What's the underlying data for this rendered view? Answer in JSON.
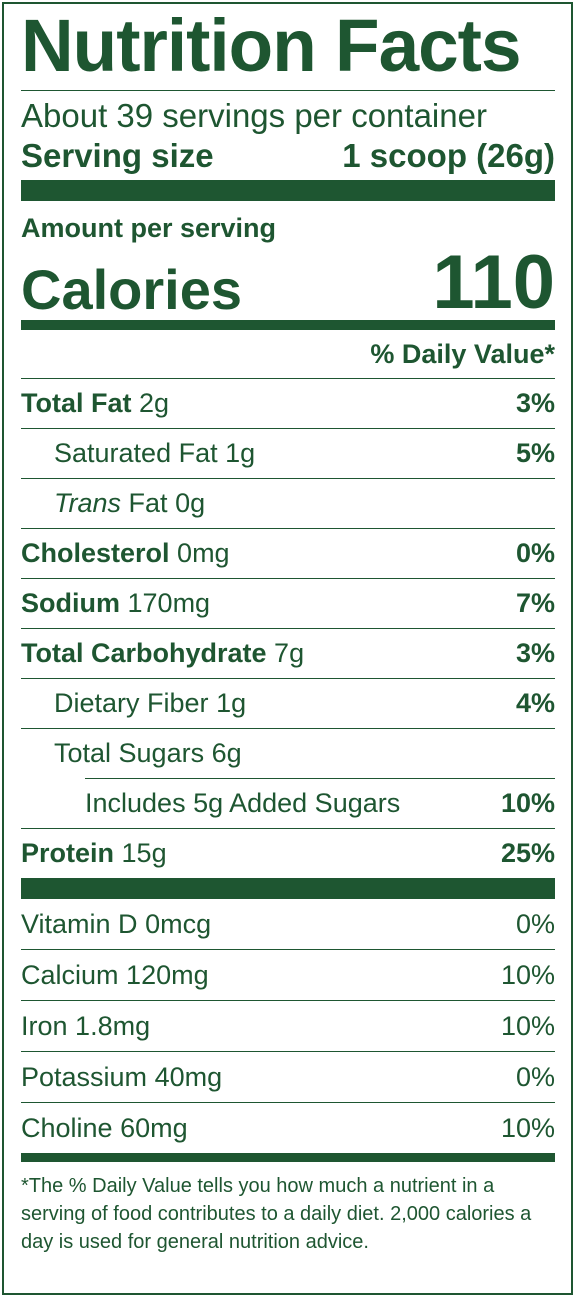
{
  "title": "Nutrition Facts",
  "servings_per_container": "About 39 servings per container",
  "serving_size": {
    "label": "Serving size",
    "value": "1 scoop (26g)"
  },
  "amount_per_serving": "Amount per serving",
  "calories": {
    "label": "Calories",
    "value": "110"
  },
  "daily_value_header": "% Daily Value*",
  "nutrients": [
    {
      "name": "Total Fat",
      "amount": "2g",
      "dv": "3%"
    },
    {
      "name": "Saturated Fat",
      "amount": "1g",
      "dv": "5%"
    },
    {
      "name_italic": "Trans",
      "name": "Fat",
      "amount": "0g",
      "dv": ""
    },
    {
      "name": "Cholesterol",
      "amount": "0mg",
      "dv": "0%"
    },
    {
      "name": "Sodium",
      "amount": "170mg",
      "dv": "7%"
    },
    {
      "name": "Total Carbohydrate",
      "amount": "7g",
      "dv": "3%"
    },
    {
      "name": "Dietary Fiber",
      "amount": "1g",
      "dv": "4%"
    },
    {
      "name": "Total Sugars",
      "amount": "6g",
      "dv": ""
    },
    {
      "name": "Includes 5g Added Sugars",
      "amount": "",
      "dv": "10%"
    },
    {
      "name": "Protein",
      "amount": "15g",
      "dv": "25%"
    }
  ],
  "vitamins": [
    {
      "name": "Vitamin D",
      "amount": "0mcg",
      "dv": "0%"
    },
    {
      "name": "Calcium",
      "amount": "120mg",
      "dv": "10%"
    },
    {
      "name": "Iron",
      "amount": "1.8mg",
      "dv": "10%"
    },
    {
      "name": "Potassium",
      "amount": "40mg",
      "dv": "0%"
    },
    {
      "name": "Choline",
      "amount": "60mg",
      "dv": "10%"
    }
  ],
  "footnote": "*The % Daily Value tells you how much a nutrient in a serving of food contributes to a daily diet. 2,000 calories a day is used for general nutrition advice.",
  "colors": {
    "label_green": "#1e5631"
  }
}
